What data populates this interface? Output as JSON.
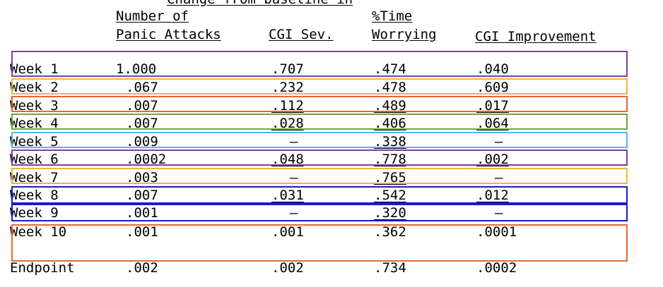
{
  "header": {
    "title_partial": "Change from baseline in",
    "col_panic_line1": "Number of",
    "col_panic_line2": "Panic Attacks",
    "col_cgisev": "CGI Sev.",
    "col_time_line1": "%Time",
    "col_time_line2": "Worrying",
    "col_cgiimp": "CGI Improvement"
  },
  "rows": [
    {
      "label": "Week 1",
      "panic": "1.000",
      "cgisev": ".707",
      "time": ".474",
      "cgiimp": ".040"
    },
    {
      "label": "Week 2",
      "panic": ".067",
      "cgisev": ".232",
      "time": ".478",
      "cgiimp": ".609"
    },
    {
      "label": "Week 3",
      "panic": ".007",
      "cgisev": ".112",
      "time": ".489",
      "cgiimp": ".017"
    },
    {
      "label": "Week 4",
      "panic": ".007",
      "cgisev": ".028",
      "time": ".406",
      "cgiimp": ".064"
    },
    {
      "label": "Week 5",
      "panic": ".009",
      "cgisev": "–",
      "time": ".338",
      "cgiimp": "–"
    },
    {
      "label": "Week 6",
      "panic": ".0002",
      "cgisev": ".048",
      "time": ".778",
      "cgiimp": ".002"
    },
    {
      "label": "Week 7",
      "panic": ".003",
      "cgisev": "–",
      "time": ".765",
      "cgiimp": "–"
    },
    {
      "label": "Week 8",
      "panic": ".007",
      "cgisev": ".031",
      "time": ".542",
      "cgiimp": ".012"
    },
    {
      "label": "Week 9",
      "panic": ".001",
      "cgisev": "–",
      "time": ".320",
      "cgiimp": "–"
    },
    {
      "label": "Week 10",
      "panic": ".001",
      "cgisev": ".001",
      "time": ".362",
      "cgiimp": ".0001"
    },
    {
      "label": "Endpoint",
      "panic": ".002",
      "cgisev": ".002",
      "time": ".734",
      "cgiimp": ".0002"
    }
  ],
  "highlight_colors": [
    "#7b3fa0",
    "#f0b53a",
    "#e8682e",
    "#7aa23a",
    "#4fb8e6",
    "#7b3fa0",
    "#f0b53a",
    "#1a1acb",
    "#1a1acb",
    "#e8682e"
  ]
}
